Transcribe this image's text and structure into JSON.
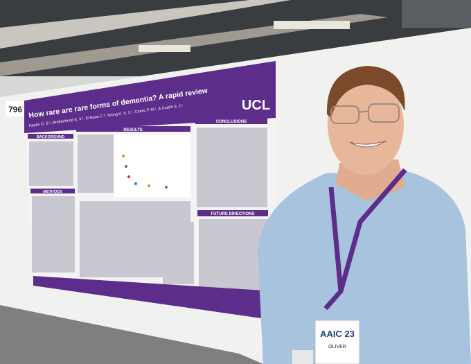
{
  "board_number": "796",
  "poster": {
    "title": "How rare are rare forms of dementia? A rapid review",
    "authors": "Hayes O. S.¹, Brotherhood E. V.¹, El Baou C.¹, Yeong K. X. X.¹, Camic P. M.¹, & Crutch S. J.¹",
    "logo": "UCL",
    "sections": [
      "BACKGROUND",
      "RESULTS",
      "CONCLUSIONS",
      "METHODS",
      "FUTURE DIRECTIONS"
    ]
  },
  "badge": {
    "event": "AAIC 23",
    "name": "OLIVER"
  }
}
